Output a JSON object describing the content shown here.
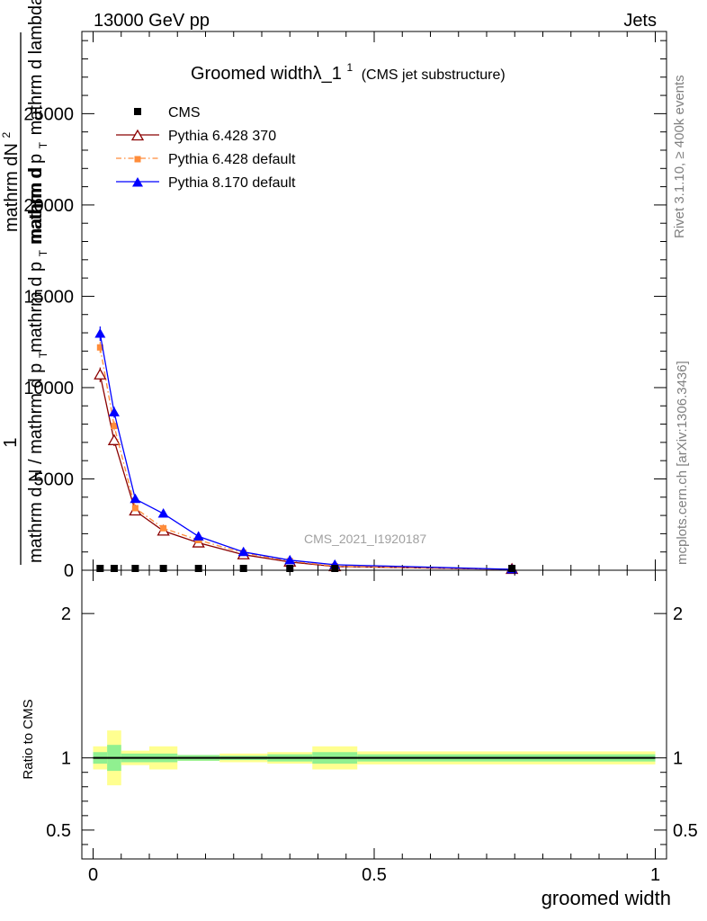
{
  "header": {
    "left": "13000 GeV pp",
    "right": "Jets"
  },
  "side": {
    "rivet": "Rivet 3.1.10, ≥ 400k events",
    "mcplots": "mcplots.cern.ch [arXiv:1306.3436]"
  },
  "chart_data": {
    "type": "line",
    "title": "Groomed widthλ_1",
    "title_sup": "1",
    "subtitle": "(CMS jet substructure)",
    "watermark": "CMS_2021_I1920187",
    "xlabel": "groomed width",
    "ylabel_main": {
      "one": "1",
      "numerator": "mathrm dN",
      "numerator_sup": "2",
      "denominator": "mathrm d p",
      "denominator_sub": "T",
      "denominator_tail": "mathrm d lambda",
      "overlay_bottom": "mathrm d N / mathrm d p",
      "overlay_bottom_sub": "T",
      "overlay_top": "mathrm d p",
      "overlay_top_sub": "T",
      "overlay_top_tail": "mathrm d"
    },
    "ylabel_ratio": "Ratio to CMS",
    "xlim": [
      -0.02,
      1.02
    ],
    "ylim_main": [
      0,
      29500
    ],
    "ylim_ratio": [
      0.3,
      2.3
    ],
    "x_ticks": [
      {
        "value": 0,
        "label": "0"
      },
      {
        "value": 0.5,
        "label": "0.5"
      },
      {
        "value": 1,
        "label": "1"
      }
    ],
    "y_ticks_main": [
      {
        "value": 0,
        "label": "0"
      },
      {
        "value": 5000,
        "label": "5000"
      },
      {
        "value": 10000,
        "label": "10000"
      },
      {
        "value": 15000,
        "label": "15000"
      },
      {
        "value": 20000,
        "label": "20000"
      },
      {
        "value": 25000,
        "label": "25000"
      }
    ],
    "y_ticks_ratio": [
      {
        "value": 0.5,
        "label": "0.5"
      },
      {
        "value": 1,
        "label": "1"
      },
      {
        "value": 2,
        "label": "2"
      }
    ],
    "legend_position": "top-left",
    "x": [
      0.0125,
      0.0375,
      0.075,
      0.125,
      0.1875,
      0.2675,
      0.35,
      0.43,
      0.745
    ],
    "series": [
      {
        "name": "CMS",
        "color": "#000000",
        "marker": "square",
        "values": [
          50,
          50,
          50,
          50,
          50,
          50,
          50,
          50,
          50
        ]
      },
      {
        "name": "Pythia 6.428 370",
        "color": "#8b0000",
        "marker": "open-triangle",
        "values": [
          10700,
          7100,
          3250,
          2150,
          1500,
          850,
          450,
          200,
          50
        ],
        "errors": [
          400,
          300,
          150,
          100,
          80,
          50,
          30,
          20,
          10
        ]
      },
      {
        "name": "Pythia 6.428 default",
        "color": "#ff8c3a",
        "marker": "filled-square",
        "dashed": true,
        "values": [
          12200,
          7900,
          3400,
          2300,
          1650,
          950,
          500,
          220,
          50
        ],
        "errors": [
          300,
          250,
          150,
          100,
          80,
          50,
          30,
          20,
          10
        ]
      },
      {
        "name": "Pythia 8.170 default",
        "color": "#0000ff",
        "marker": "filled-triangle",
        "values": [
          12950,
          8650,
          3900,
          3100,
          1850,
          1000,
          550,
          300,
          50
        ],
        "errors": [
          400,
          300,
          150,
          100,
          80,
          50,
          30,
          20,
          10
        ]
      }
    ],
    "ratio_bands": {
      "edges": [
        0,
        0.025,
        0.05,
        0.1,
        0.15,
        0.225,
        0.31,
        0.39,
        0.47,
        1.0
      ],
      "inner": [
        [
          0.96,
          1.04
        ],
        [
          0.91,
          1.09
        ],
        [
          0.97,
          1.03
        ],
        [
          0.97,
          1.03
        ],
        [
          0.98,
          1.02
        ],
        [
          0.985,
          1.015
        ],
        [
          0.975,
          1.025
        ],
        [
          0.96,
          1.04
        ],
        [
          0.975,
          1.025
        ]
      ],
      "outer": [
        [
          0.92,
          1.08
        ],
        [
          0.81,
          1.19
        ],
        [
          0.95,
          1.05
        ],
        [
          0.92,
          1.08
        ],
        [
          0.98,
          1.02
        ],
        [
          0.97,
          1.03
        ],
        [
          0.96,
          1.04
        ],
        [
          0.92,
          1.08
        ],
        [
          0.955,
          1.045
        ]
      ],
      "inner_color": "#90f090",
      "outer_color": "#ffff90",
      "line_value": 1
    }
  }
}
